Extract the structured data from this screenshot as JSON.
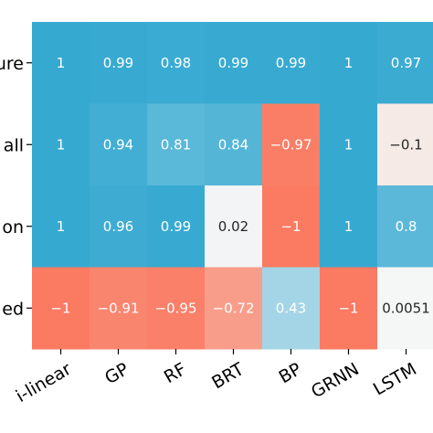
{
  "chart_data": {
    "type": "heatmap",
    "rows": [
      "ure",
      "all",
      "on",
      "ed"
    ],
    "columns": [
      "i-linear",
      "GP",
      "RF",
      "BRT",
      "BP",
      "GRNN",
      "LSTM"
    ],
    "values": [
      [
        1,
        0.99,
        0.98,
        0.99,
        0.99,
        1,
        0.97
      ],
      [
        1,
        0.94,
        0.81,
        0.84,
        -0.97,
        1,
        -0.1
      ],
      [
        1,
        0.96,
        0.99,
        0.02,
        -1,
        1,
        0.8
      ],
      [
        -1,
        -0.91,
        -0.95,
        -0.72,
        0.43,
        -1,
        0.0051
      ]
    ],
    "labels": [
      [
        "1",
        "0.99",
        "0.98",
        "0.99",
        "0.99",
        "1",
        "0.97"
      ],
      [
        "1",
        "0.94",
        "0.81",
        "0.84",
        "−0.97",
        "1",
        "−0.1"
      ],
      [
        "1",
        "0.96",
        "0.99",
        "0.02",
        "−1",
        "1",
        "0.8"
      ],
      [
        "−1",
        "−0.91",
        "−0.95",
        "−0.72",
        "0.43",
        "−1",
        "0.0051"
      ]
    ],
    "value_range": [
      -1,
      1
    ],
    "colormap": {
      "negative": "#fa7a62",
      "neutral": "#f6f6f6",
      "positive": "#36a9d1"
    },
    "title": "",
    "xlabel": "",
    "ylabel": "",
    "grid": false
  }
}
